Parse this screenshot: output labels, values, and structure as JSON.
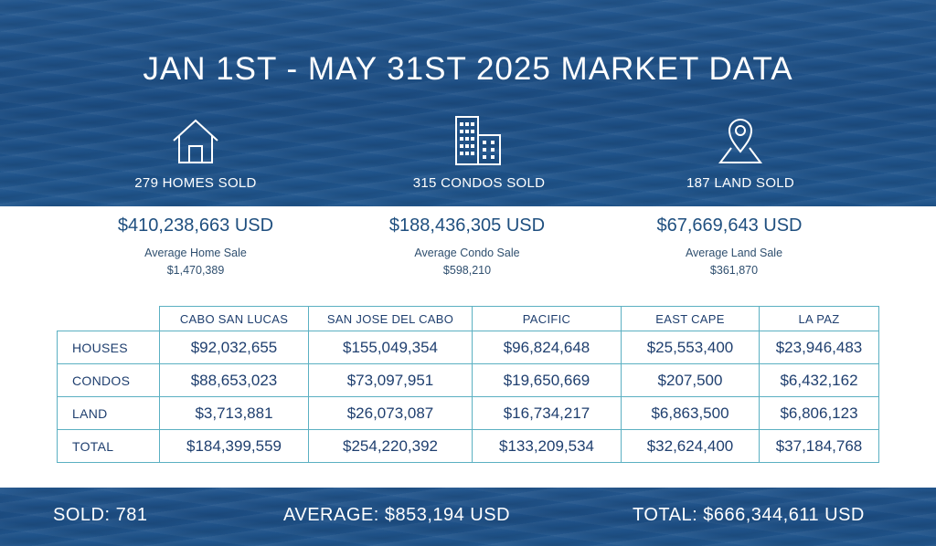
{
  "title": "JAN 1ST - MAY 31ST 2025 MARKET DATA",
  "stats": [
    {
      "icon": "house-icon",
      "label": "279 HOMES SOLD",
      "total": "$410,238,663 USD",
      "avg_label": "Average Home Sale",
      "avg_value": "$1,470,389"
    },
    {
      "icon": "building-icon",
      "label": "315 CONDOS SOLD",
      "total": "$188,436,305 USD",
      "avg_label": "Average Condo Sale",
      "avg_value": "$598,210"
    },
    {
      "icon": "location-pin-icon",
      "label": "187 LAND SOLD",
      "total": "$67,669,643 USD",
      "avg_label": "Average Land Sale",
      "avg_value": "$361,870"
    }
  ],
  "table": {
    "columns": [
      "CABO SAN LUCAS",
      "SAN JOSE DEL CABO",
      "PACIFIC",
      "EAST CAPE",
      "LA PAZ"
    ],
    "rows": [
      {
        "label": "HOUSES",
        "values": [
          "$92,032,655",
          "$155,049,354",
          "$96,824,648",
          "$25,553,400",
          "$23,946,483"
        ]
      },
      {
        "label": "CONDOS",
        "values": [
          "$88,653,023",
          "$73,097,951",
          "$19,650,669",
          "$207,500",
          "$6,432,162"
        ]
      },
      {
        "label": "LAND",
        "values": [
          "$3,713,881",
          "$26,073,087",
          "$16,734,217",
          "$6,863,500",
          "$6,806,123"
        ]
      },
      {
        "label": "TOTAL",
        "values": [
          "$184,399,559",
          "$254,220,392",
          "$133,209,534",
          "$32,624,400",
          "$37,184,768"
        ]
      }
    ]
  },
  "footer": {
    "sold": "SOLD:  781",
    "average": "AVERAGE:   $853,194 USD",
    "total": "TOTAL:  $666,344,611 USD"
  }
}
